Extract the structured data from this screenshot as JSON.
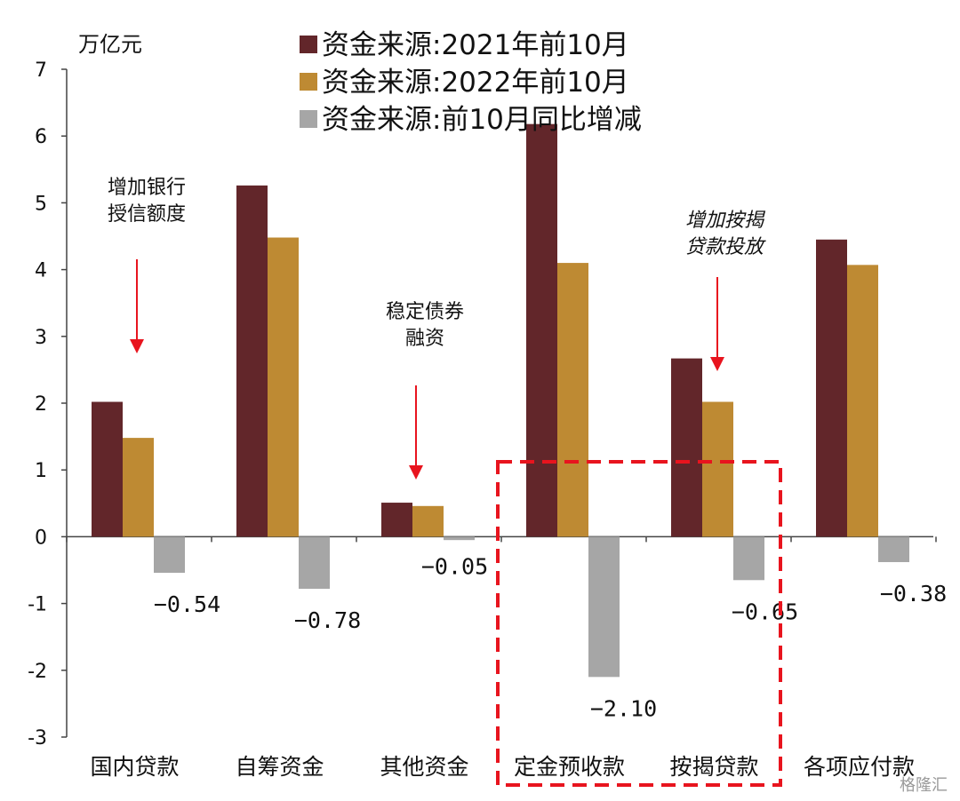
{
  "chart_data": {
    "type": "bar",
    "unit": "万亿元",
    "categories": [
      "国内贷款",
      "自筹资金",
      "其他资金",
      "定金预收款",
      "按揭贷款",
      "各项应付款"
    ],
    "series": [
      {
        "name": "资金来源:2021年前10月",
        "color": "#62262a",
        "values": [
          2.02,
          5.26,
          0.51,
          6.18,
          2.67,
          4.45
        ]
      },
      {
        "name": "资金来源:2022年前10月",
        "color": "#be8a33",
        "values": [
          1.48,
          4.48,
          0.46,
          4.1,
          2.02,
          4.07
        ]
      },
      {
        "name": "资金来源:前10月同比增减",
        "color": "#a6a6a6",
        "values": [
          -0.54,
          -0.78,
          -0.05,
          -2.1,
          -0.65,
          -0.38
        ]
      }
    ],
    "data_labels": [
      "-0.54",
      "-0.78",
      "-0.05",
      "-2.10",
      "-0.65",
      "-0.38"
    ],
    "ylim": [
      -3,
      7
    ],
    "yticks": [
      "7",
      "6",
      "5",
      "4",
      "3",
      "2",
      "1",
      "0",
      "-1",
      "-2",
      "-3"
    ],
    "legend_position": "top",
    "grid": false
  },
  "annotations": [
    {
      "lines": [
        "增加银行",
        "授信额度"
      ]
    },
    {
      "lines": [
        "稳定债券",
        "融资"
      ]
    },
    {
      "lines": [
        "增加按揭",
        "贷款投放"
      ]
    }
  ],
  "highlight": {
    "color": "#e8141e",
    "style": "dashed",
    "covers": [
      "定金预收款",
      "按揭贷款"
    ]
  },
  "arrow_color": "#e8141e",
  "watermark": "格隆汇"
}
